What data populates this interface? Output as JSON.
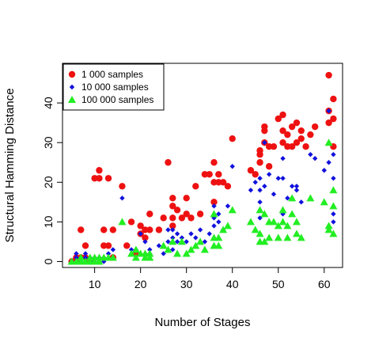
{
  "chart_data": {
    "type": "scatter",
    "title": "",
    "xlabel": "Number of Stages",
    "ylabel": "Structural Hamming Distance",
    "xlim": [
      3,
      64
    ],
    "ylim": [
      -1.5,
      50
    ],
    "xticks": [
      10,
      20,
      30,
      40,
      50,
      60
    ],
    "yticks": [
      0,
      10,
      20,
      30,
      40
    ],
    "grid": false,
    "legend_position": "top-left",
    "series": [
      {
        "name": "1 000 samples",
        "color": "#ee1111",
        "marker": "circle",
        "points": [
          [
            5,
            0
          ],
          [
            6,
            1
          ],
          [
            6,
            0
          ],
          [
            7,
            8
          ],
          [
            7,
            1
          ],
          [
            8,
            4
          ],
          [
            8,
            1
          ],
          [
            9,
            0
          ],
          [
            10,
            21
          ],
          [
            11,
            23
          ],
          [
            11,
            21
          ],
          [
            12,
            8
          ],
          [
            12,
            4
          ],
          [
            13,
            21
          ],
          [
            13,
            4
          ],
          [
            14,
            8
          ],
          [
            14,
            1
          ],
          [
            16,
            19
          ],
          [
            17,
            4
          ],
          [
            18,
            10
          ],
          [
            19,
            2
          ],
          [
            20,
            9
          ],
          [
            20,
            7
          ],
          [
            21,
            8
          ],
          [
            21,
            6
          ],
          [
            22,
            12
          ],
          [
            22,
            8
          ],
          [
            24,
            8
          ],
          [
            25,
            11
          ],
          [
            26,
            25
          ],
          [
            27,
            16
          ],
          [
            27,
            14
          ],
          [
            27,
            11
          ],
          [
            27,
            9
          ],
          [
            28,
            13
          ],
          [
            29,
            11
          ],
          [
            30,
            16
          ],
          [
            30,
            12
          ],
          [
            31,
            11
          ],
          [
            32,
            19
          ],
          [
            33,
            12
          ],
          [
            34,
            22
          ],
          [
            35,
            22
          ],
          [
            36,
            25
          ],
          [
            36,
            20
          ],
          [
            36,
            15
          ],
          [
            37,
            20
          ],
          [
            37,
            22
          ],
          [
            38,
            20
          ],
          [
            39,
            19
          ],
          [
            40,
            31
          ],
          [
            44,
            23
          ],
          [
            45,
            22
          ],
          [
            46,
            28
          ],
          [
            46,
            27
          ],
          [
            46,
            25
          ],
          [
            47,
            34
          ],
          [
            47,
            33
          ],
          [
            47,
            30
          ],
          [
            48,
            24
          ],
          [
            48,
            29
          ],
          [
            49,
            29
          ],
          [
            50,
            36
          ],
          [
            51,
            37
          ],
          [
            51,
            33
          ],
          [
            51,
            30
          ],
          [
            52,
            32
          ],
          [
            52,
            29
          ],
          [
            53,
            34
          ],
          [
            53,
            29
          ],
          [
            54,
            30
          ],
          [
            54,
            35
          ],
          [
            55,
            31
          ],
          [
            55,
            33
          ],
          [
            56,
            29
          ],
          [
            57,
            32
          ],
          [
            58,
            34
          ],
          [
            61,
            47
          ],
          [
            61,
            38
          ],
          [
            61,
            35
          ],
          [
            62,
            41
          ],
          [
            62,
            36
          ],
          [
            62,
            29
          ]
        ]
      },
      {
        "name": "10 000 samples",
        "color": "#1111dd",
        "marker": "diamond",
        "points": [
          [
            5,
            0
          ],
          [
            6,
            2
          ],
          [
            6,
            1
          ],
          [
            7,
            1
          ],
          [
            7,
            0
          ],
          [
            8,
            1
          ],
          [
            8,
            2
          ],
          [
            9,
            1
          ],
          [
            9,
            0
          ],
          [
            10,
            1
          ],
          [
            10,
            0
          ],
          [
            11,
            1
          ],
          [
            12,
            1
          ],
          [
            12,
            0
          ],
          [
            13,
            2
          ],
          [
            14,
            3
          ],
          [
            16,
            16
          ],
          [
            18,
            3
          ],
          [
            19,
            3
          ],
          [
            20,
            7
          ],
          [
            21,
            5
          ],
          [
            22,
            3
          ],
          [
            22,
            2
          ],
          [
            24,
            4
          ],
          [
            25,
            2
          ],
          [
            26,
            8
          ],
          [
            26,
            5
          ],
          [
            27,
            8
          ],
          [
            27,
            6
          ],
          [
            27,
            3
          ],
          [
            28,
            7
          ],
          [
            28,
            5
          ],
          [
            29,
            6
          ],
          [
            30,
            5
          ],
          [
            31,
            7
          ],
          [
            32,
            6
          ],
          [
            33,
            8
          ],
          [
            34,
            5
          ],
          [
            35,
            7
          ],
          [
            36,
            14
          ],
          [
            36,
            11
          ],
          [
            36,
            9
          ],
          [
            37,
            10
          ],
          [
            37,
            12
          ],
          [
            38,
            8
          ],
          [
            39,
            14
          ],
          [
            40,
            24
          ],
          [
            44,
            18
          ],
          [
            45,
            20
          ],
          [
            46,
            21
          ],
          [
            46,
            18
          ],
          [
            46,
            15
          ],
          [
            46,
            11
          ],
          [
            47,
            30
          ],
          [
            47,
            19
          ],
          [
            48,
            22
          ],
          [
            49,
            17
          ],
          [
            50,
            21
          ],
          [
            51,
            26
          ],
          [
            51,
            21
          ],
          [
            51,
            12
          ],
          [
            52,
            16
          ],
          [
            53,
            19
          ],
          [
            54,
            18
          ],
          [
            54,
            19
          ],
          [
            55,
            15
          ],
          [
            57,
            27
          ],
          [
            58,
            26
          ],
          [
            60,
            23
          ],
          [
            61,
            38
          ],
          [
            61,
            25
          ],
          [
            62,
            27
          ],
          [
            62,
            21
          ],
          [
            62,
            12
          ],
          [
            62,
            10
          ]
        ]
      },
      {
        "name": "100 000 samples",
        "color": "#22ee22",
        "marker": "triangle",
        "points": [
          [
            5,
            0
          ],
          [
            6,
            0
          ],
          [
            7,
            0
          ],
          [
            7,
            1
          ],
          [
            8,
            0
          ],
          [
            9,
            0
          ],
          [
            9,
            1
          ],
          [
            10,
            0
          ],
          [
            10,
            1
          ],
          [
            11,
            0
          ],
          [
            11,
            1
          ],
          [
            12,
            1
          ],
          [
            13,
            1
          ],
          [
            14,
            1
          ],
          [
            16,
            10
          ],
          [
            18,
            2
          ],
          [
            19,
            1
          ],
          [
            19,
            3
          ],
          [
            20,
            2
          ],
          [
            21,
            1
          ],
          [
            21,
            2
          ],
          [
            22,
            1
          ],
          [
            22,
            2
          ],
          [
            25,
            4
          ],
          [
            26,
            3
          ],
          [
            27,
            5
          ],
          [
            28,
            2
          ],
          [
            29,
            5
          ],
          [
            30,
            2
          ],
          [
            31,
            3
          ],
          [
            32,
            4
          ],
          [
            33,
            5
          ],
          [
            34,
            3
          ],
          [
            36,
            12
          ],
          [
            36,
            6
          ],
          [
            36,
            4
          ],
          [
            37,
            4
          ],
          [
            37,
            6
          ],
          [
            38,
            8
          ],
          [
            39,
            9
          ],
          [
            40,
            13
          ],
          [
            44,
            10
          ],
          [
            45,
            8
          ],
          [
            46,
            13
          ],
          [
            46,
            7
          ],
          [
            46,
            5
          ],
          [
            47,
            5
          ],
          [
            47,
            12
          ],
          [
            48,
            10
          ],
          [
            48,
            6
          ],
          [
            49,
            10
          ],
          [
            50,
            9
          ],
          [
            50,
            6
          ],
          [
            51,
            10
          ],
          [
            51,
            13
          ],
          [
            52,
            9
          ],
          [
            52,
            6
          ],
          [
            53,
            16
          ],
          [
            53,
            12
          ],
          [
            54,
            10
          ],
          [
            54,
            7
          ],
          [
            55,
            6
          ],
          [
            57,
            16
          ],
          [
            60,
            15
          ],
          [
            61,
            9
          ],
          [
            61,
            30
          ],
          [
            61,
            8
          ],
          [
            62,
            18
          ],
          [
            62,
            7
          ],
          [
            62,
            14
          ]
        ]
      }
    ]
  }
}
